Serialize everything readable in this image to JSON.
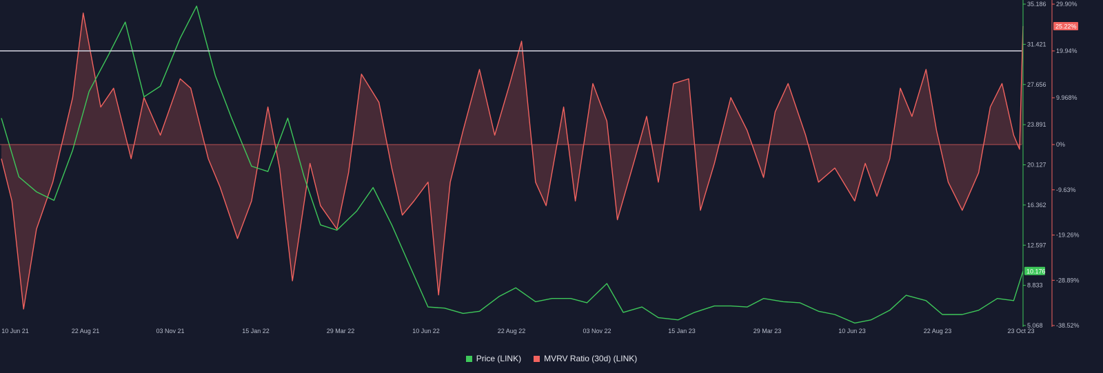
{
  "colors": {
    "background": "#161a2b",
    "price": "#3ec85a",
    "mvrv": "#f2635f",
    "mvrv_fill": "rgba(242, 99, 95, 0.22)",
    "reference_line": "#c9c9d6",
    "axis_text": "#b7bccb"
  },
  "chart_data": {
    "type": "line",
    "x_ticks": [
      "10 Jun 21",
      "22 Aug 21",
      "03 Nov 21",
      "15 Jan 22",
      "29 Mar 22",
      "10 Jun 22",
      "22 Aug 22",
      "03 Nov 22",
      "15 Jan 23",
      "29 Mar 23",
      "10 Jun 23",
      "22 Aug 23",
      "23 Oct 23"
    ],
    "y_left": {
      "label": "Price (LINK)",
      "ticks": [
        "35.186",
        "31.421",
        "27.656",
        "23.891",
        "20.127",
        "16.362",
        "12.597",
        "8.833",
        "5.068"
      ],
      "range": [
        5.068,
        35.186
      ]
    },
    "y_right": {
      "label": "MVRV Ratio (30d) (LINK)",
      "ticks": [
        "29.90%",
        "19.94%",
        "9.968%",
        "0%",
        "-9.63%",
        "-19.26%",
        "-28.89%",
        "-38.52%"
      ],
      "range": [
        -38.52,
        29.9
      ]
    },
    "current_price_label": "10.176",
    "current_mvrv_label": "25.22%",
    "reference_line_value": 19.94,
    "zero_line_value": 0,
    "series": [
      {
        "name": "Price (LINK)",
        "axis": "left",
        "x": [
          "2021-06-01",
          "2021-06-16",
          "2021-07-01",
          "2021-07-16",
          "2021-08-01",
          "2021-08-15",
          "2021-09-01",
          "2021-09-15",
          "2021-10-01",
          "2021-10-15",
          "2021-11-01",
          "2021-11-15",
          "2021-12-01",
          "2021-12-15",
          "2022-01-01",
          "2022-01-15",
          "2022-02-01",
          "2022-02-15",
          "2022-03-01",
          "2022-03-15",
          "2022-04-01",
          "2022-04-15",
          "2022-05-01",
          "2022-05-15",
          "2022-06-01",
          "2022-06-15",
          "2022-07-01",
          "2022-07-15",
          "2022-08-01",
          "2022-08-15",
          "2022-09-01",
          "2022-09-15",
          "2022-10-01",
          "2022-10-15",
          "2022-11-01",
          "2022-11-15",
          "2022-12-01",
          "2022-12-15",
          "2023-01-01",
          "2023-01-15",
          "2023-02-01",
          "2023-02-15",
          "2023-03-01",
          "2023-03-15",
          "2023-04-01",
          "2023-04-15",
          "2023-05-01",
          "2023-05-15",
          "2023-06-01",
          "2023-06-15",
          "2023-07-01",
          "2023-07-15",
          "2023-08-01",
          "2023-08-15",
          "2023-09-01",
          "2023-09-15",
          "2023-10-01",
          "2023-10-15",
          "2023-10-23"
        ],
        "y": [
          24.5,
          19.0,
          17.6,
          16.8,
          21.5,
          27.0,
          30.5,
          33.5,
          26.5,
          27.5,
          32.0,
          35.0,
          28.5,
          24.5,
          20.0,
          19.5,
          24.5,
          19.0,
          14.5,
          14.0,
          15.8,
          18.0,
          14.5,
          11.0,
          6.8,
          6.7,
          6.2,
          6.4,
          7.8,
          8.6,
          7.3,
          7.6,
          7.6,
          7.2,
          9.0,
          6.3,
          6.8,
          5.8,
          5.6,
          6.3,
          6.9,
          6.9,
          6.8,
          7.6,
          7.3,
          7.2,
          6.4,
          6.1,
          5.3,
          5.6,
          6.5,
          7.9,
          7.4,
          6.1,
          6.1,
          6.5,
          7.6,
          7.4,
          10.176
        ]
      },
      {
        "name": "MVRV Ratio (30d) (LINK)",
        "axis": "right",
        "x": [
          "2021-06-01",
          "2021-06-10",
          "2021-06-20",
          "2021-07-01",
          "2021-07-15",
          "2021-08-01",
          "2021-08-10",
          "2021-08-25",
          "2021-09-05",
          "2021-09-20",
          "2021-10-01",
          "2021-10-15",
          "2021-11-01",
          "2021-11-10",
          "2021-11-25",
          "2021-12-05",
          "2021-12-20",
          "2022-01-01",
          "2022-01-15",
          "2022-01-25",
          "2022-02-05",
          "2022-02-20",
          "2022-03-01",
          "2022-03-15",
          "2022-03-25",
          "2022-04-05",
          "2022-04-20",
          "2022-05-01",
          "2022-05-10",
          "2022-05-20",
          "2022-06-01",
          "2022-06-10",
          "2022-06-20",
          "2022-07-01",
          "2022-07-15",
          "2022-07-28",
          "2022-08-10",
          "2022-08-20",
          "2022-09-01",
          "2022-09-10",
          "2022-09-25",
          "2022-10-05",
          "2022-10-20",
          "2022-11-01",
          "2022-11-10",
          "2022-11-25",
          "2022-12-05",
          "2022-12-15",
          "2022-12-28",
          "2023-01-10",
          "2023-01-20",
          "2023-02-01",
          "2023-02-15",
          "2023-03-01",
          "2023-03-15",
          "2023-03-25",
          "2023-04-05",
          "2023-04-20",
          "2023-05-01",
          "2023-05-15",
          "2023-06-01",
          "2023-06-10",
          "2023-06-20",
          "2023-07-01",
          "2023-07-10",
          "2023-07-20",
          "2023-08-01",
          "2023-08-10",
          "2023-08-20",
          "2023-09-01",
          "2023-09-15",
          "2023-09-25",
          "2023-10-05",
          "2023-10-15",
          "2023-10-20",
          "2023-10-23"
        ],
        "y": [
          -3,
          -12,
          -35,
          -18,
          -8,
          10,
          28,
          8,
          12,
          -3,
          10,
          2,
          14,
          12,
          -3,
          -9,
          -20,
          -12,
          8,
          -5,
          -29,
          -4,
          -13,
          -18,
          -6,
          15,
          9,
          -5,
          -15,
          -12,
          -8,
          -32,
          -8,
          3,
          16,
          2,
          13,
          22,
          -8,
          -13,
          8,
          -12,
          13,
          5,
          -16,
          -3,
          6,
          -8,
          13,
          14,
          -14,
          -4,
          10,
          3,
          -7,
          7,
          13,
          2,
          -8,
          -5,
          -12,
          -4,
          -11,
          -3,
          12,
          6,
          16,
          3,
          -8,
          -14,
          -6,
          8,
          13,
          2,
          -1,
          25.22
        ]
      }
    ]
  }
}
